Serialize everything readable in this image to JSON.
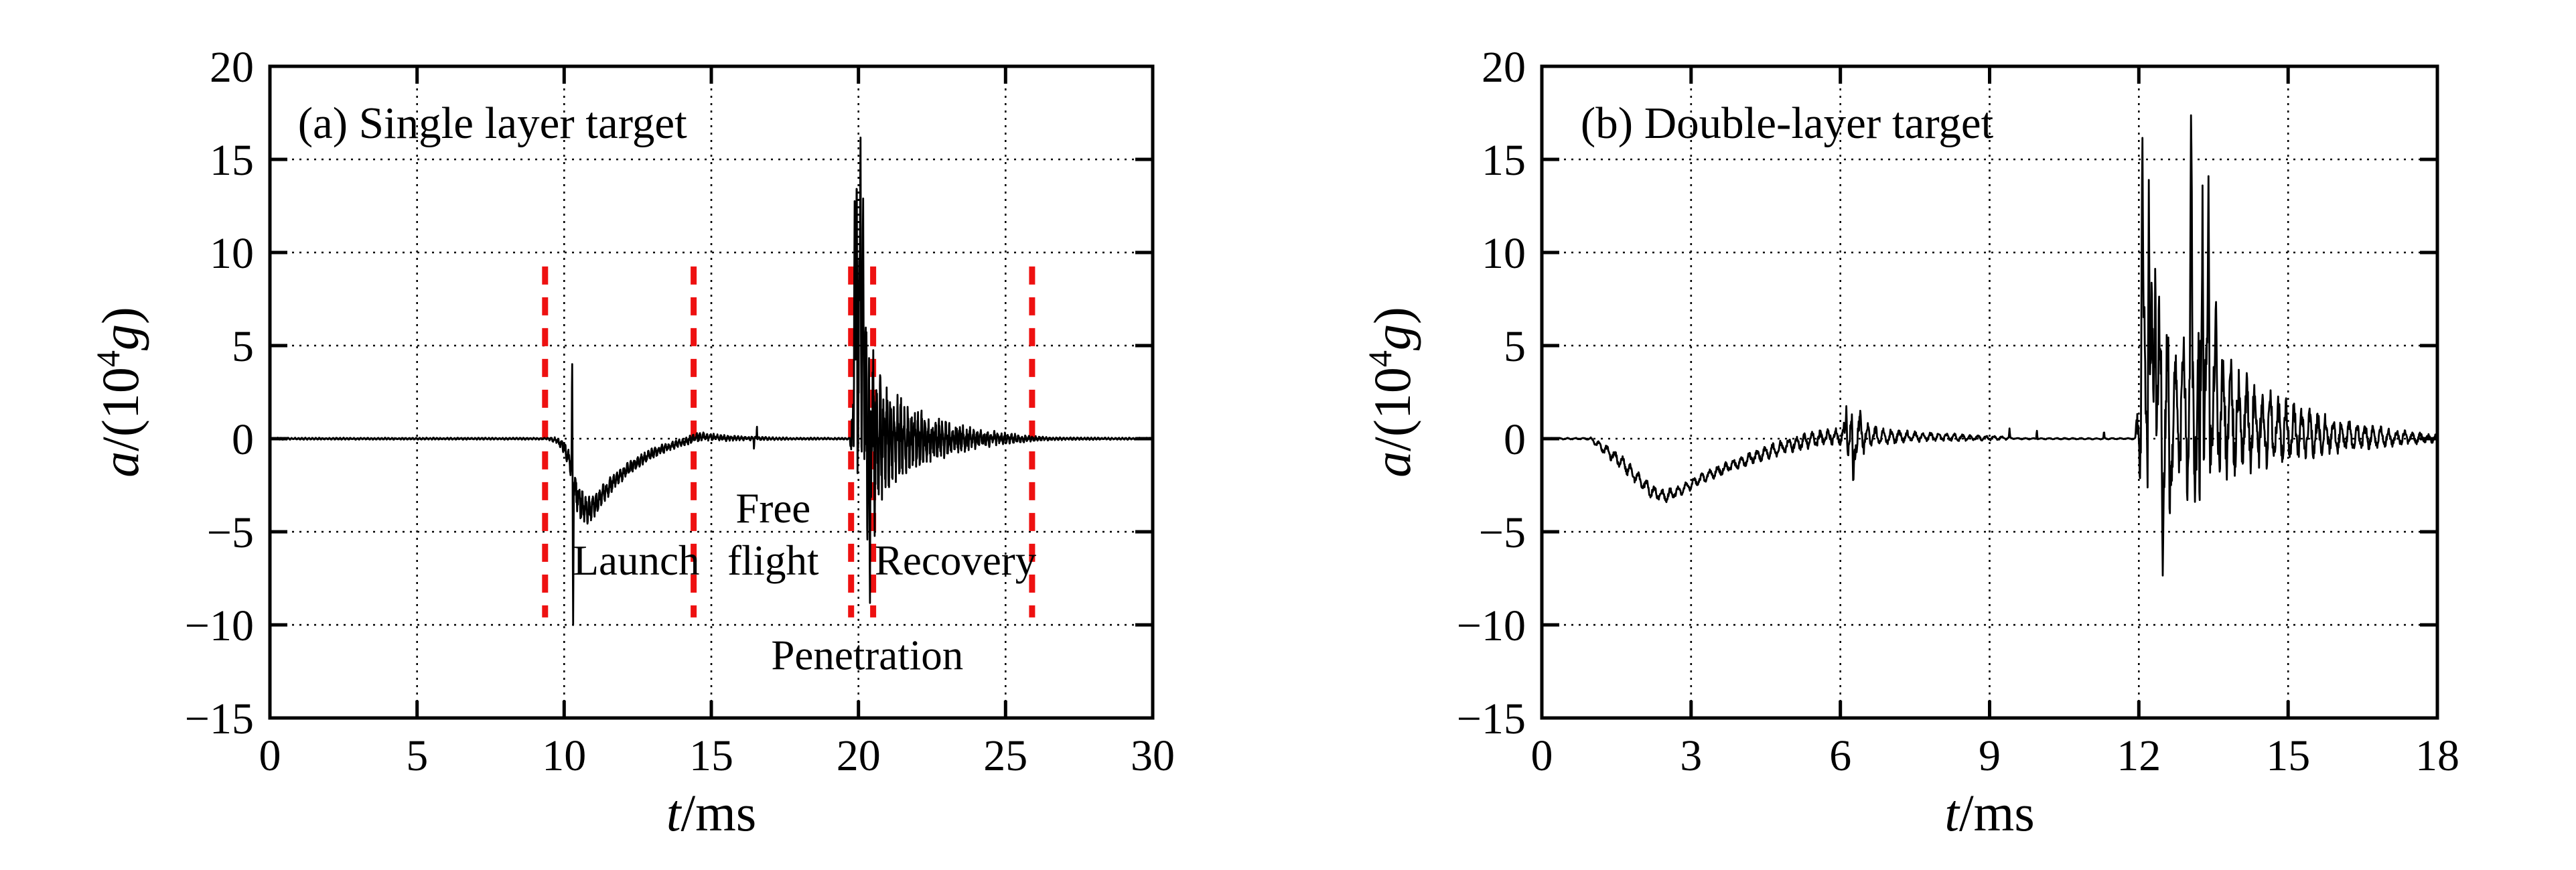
{
  "figure": {
    "background": "#ffffff",
    "description": "Two acceleration-time histories from projectile penetration tests"
  },
  "chart_data": [
    {
      "id": "a",
      "type": "line",
      "title": "(a) Single layer target",
      "title_pos": [
        0.95,
        16.15
      ],
      "xlabel": "t/ms",
      "ylabel": "a/(10⁴g)",
      "xlabel_parts": {
        "var": "t",
        "unit": "ms"
      },
      "ylabel_parts": {
        "numerator": "a",
        "open": "/(10",
        "exponent": "4",
        "base_symbol": "g",
        "close": ")"
      },
      "xlim": [
        0,
        30
      ],
      "ylim": [
        -15,
        20
      ],
      "xticks": [
        0,
        5,
        10,
        15,
        20,
        25,
        30
      ],
      "yticks": [
        -15,
        -10,
        -5,
        0,
        5,
        10,
        15,
        20
      ],
      "grid_x": [
        5,
        10,
        15,
        20,
        25
      ],
      "grid_y": [
        -10,
        -5,
        0,
        5,
        10,
        15
      ],
      "grid_style": "dotted",
      "region_lines": {
        "color": "#ee1111",
        "style": "dashed",
        "x": [
          9.35,
          14.4,
          19.75,
          20.5,
          25.9
        ],
        "y_span": [
          -9.6,
          9.25
        ]
      },
      "phase_labels": [
        {
          "lines": [
            "Launch"
          ],
          "x": 12.45,
          "y": [
            -7.3
          ]
        },
        {
          "lines": [
            "Free",
            "flight"
          ],
          "x": 17.1,
          "y": [
            -4.5,
            -7.3
          ]
        },
        {
          "lines": [
            "Recovery"
          ],
          "x": 23.3,
          "y": [
            -7.3
          ]
        },
        {
          "lines": [
            "Penetration"
          ],
          "x": 20.3,
          "y": [
            -12.4
          ]
        }
      ],
      "signal": {
        "color": "#000000",
        "dt": 0.008,
        "seed": 11,
        "osc_freq": 8.5,
        "osc_mix": 0.58,
        "mean": [
          [
            0,
            0
          ],
          [
            9.5,
            0
          ],
          [
            9.75,
            -0.1
          ],
          [
            10.0,
            -0.45
          ],
          [
            10.2,
            -1.3
          ],
          [
            10.35,
            -2.6
          ],
          [
            10.55,
            -3.5
          ],
          [
            10.75,
            -3.85
          ],
          [
            11.0,
            -3.65
          ],
          [
            11.3,
            -3.0
          ],
          [
            11.7,
            -2.3
          ],
          [
            12.1,
            -1.7
          ],
          [
            12.6,
            -1.15
          ],
          [
            13.1,
            -0.7
          ],
          [
            13.6,
            -0.4
          ],
          [
            14.0,
            -0.2
          ],
          [
            14.35,
            -0.02
          ],
          [
            14.6,
            0.12
          ],
          [
            15.1,
            0.06
          ],
          [
            16.0,
            0.02
          ],
          [
            17.5,
            0
          ],
          [
            19.78,
            0
          ],
          [
            19.9,
            2.4
          ],
          [
            20.05,
            3.6
          ],
          [
            20.2,
            2.6
          ],
          [
            20.45,
            0.8
          ],
          [
            20.8,
            0.15
          ],
          [
            21.2,
            0
          ],
          [
            30,
            0
          ]
        ],
        "envelope": [
          [
            0,
            0.055
          ],
          [
            9.4,
            0.055
          ],
          [
            9.8,
            0.2
          ],
          [
            10.1,
            0.45
          ],
          [
            10.35,
            0.95
          ],
          [
            10.7,
            0.85
          ],
          [
            11.1,
            0.6
          ],
          [
            11.7,
            0.45
          ],
          [
            12.4,
            0.35
          ],
          [
            13.3,
            0.27
          ],
          [
            14.0,
            0.22
          ],
          [
            14.55,
            0.3
          ],
          [
            15.2,
            0.2
          ],
          [
            16.0,
            0.13
          ],
          [
            16.9,
            0.09
          ],
          [
            17.8,
            0.06
          ],
          [
            19.7,
            0.05
          ],
          [
            19.84,
            2.8
          ],
          [
            19.95,
            6.0
          ],
          [
            20.08,
            7.2
          ],
          [
            20.2,
            6.5
          ],
          [
            20.38,
            5.2
          ],
          [
            20.6,
            4.2
          ],
          [
            20.9,
            3.3
          ],
          [
            21.3,
            2.5
          ],
          [
            21.8,
            1.85
          ],
          [
            22.4,
            1.35
          ],
          [
            23.1,
            0.95
          ],
          [
            23.9,
            0.62
          ],
          [
            24.7,
            0.4
          ],
          [
            25.5,
            0.23
          ],
          [
            26.1,
            0.13
          ],
          [
            26.7,
            0.08
          ],
          [
            30,
            0.05
          ]
        ],
        "spikes": [
          [
            10.27,
            4.6,
            0.02
          ],
          [
            10.305,
            -10.35,
            0.022
          ],
          [
            16.45,
            -0.6,
            0.015
          ],
          [
            16.55,
            0.75,
            0.015
          ],
          [
            19.87,
            13.6,
            0.028
          ],
          [
            19.94,
            15.2,
            0.028
          ],
          [
            20.07,
            17.3,
            0.03
          ],
          [
            20.16,
            12.9,
            0.026
          ],
          [
            20.3,
            -6.6,
            0.02
          ],
          [
            20.39,
            -9.9,
            0.026
          ],
          [
            20.55,
            -5.6,
            0.02
          ]
        ]
      }
    },
    {
      "id": "b",
      "type": "line",
      "title": "(b) Double-layer target",
      "title_pos": [
        0.78,
        16.15
      ],
      "xlabel": "t/ms",
      "ylabel": "a/(10⁴g)",
      "xlabel_parts": {
        "var": "t",
        "unit": "ms"
      },
      "ylabel_parts": {
        "numerator": "a",
        "open": "/(10",
        "exponent": "4",
        "base_symbol": "g",
        "close": ")"
      },
      "xlim": [
        0,
        18
      ],
      "ylim": [
        -15,
        20
      ],
      "xticks": [
        0,
        3,
        6,
        9,
        12,
        15,
        18
      ],
      "yticks": [
        -15,
        -10,
        -5,
        0,
        5,
        10,
        15,
        20
      ],
      "grid_x": [
        3,
        6,
        9,
        12,
        15
      ],
      "grid_y": [
        -10,
        -5,
        0,
        5,
        10,
        15
      ],
      "grid_style": "dotted",
      "phase_labels": [],
      "signal": {
        "color": "#000000",
        "dt": 0.008,
        "seed": 23,
        "osc_freq": 6.3,
        "osc_mix": 0.66,
        "mean": [
          [
            0,
            0
          ],
          [
            0.98,
            0
          ],
          [
            1.25,
            -0.55
          ],
          [
            1.6,
            -1.25
          ],
          [
            1.95,
            -2.2
          ],
          [
            2.25,
            -2.9
          ],
          [
            2.5,
            -3.08
          ],
          [
            2.78,
            -2.8
          ],
          [
            3.1,
            -2.3
          ],
          [
            3.45,
            -1.85
          ],
          [
            3.85,
            -1.4
          ],
          [
            4.25,
            -1.0
          ],
          [
            4.65,
            -0.62
          ],
          [
            5.05,
            -0.3
          ],
          [
            5.45,
            -0.05
          ],
          [
            5.85,
            0.12
          ],
          [
            6.3,
            0.1
          ],
          [
            6.9,
            0.12
          ],
          [
            7.6,
            0.1
          ],
          [
            8.4,
            0.06
          ],
          [
            9.3,
            0.03
          ],
          [
            9.65,
            0
          ],
          [
            11.95,
            0
          ],
          [
            12.1,
            2.2
          ],
          [
            12.35,
            2.6
          ],
          [
            12.65,
            1.6
          ],
          [
            12.95,
            1.9
          ],
          [
            13.1,
            2.6
          ],
          [
            13.45,
            2.0
          ],
          [
            13.75,
            1.25
          ],
          [
            14.15,
            0.8
          ],
          [
            14.65,
            0.5
          ],
          [
            15.25,
            0.3
          ],
          [
            16.0,
            0.15
          ],
          [
            17.0,
            0.06
          ],
          [
            18,
            0.02
          ]
        ],
        "envelope": [
          [
            0,
            0.045
          ],
          [
            0.95,
            0.05
          ],
          [
            1.2,
            0.3
          ],
          [
            1.6,
            0.42
          ],
          [
            2.1,
            0.46
          ],
          [
            2.6,
            0.36
          ],
          [
            3.1,
            0.3
          ],
          [
            3.7,
            0.33
          ],
          [
            4.3,
            0.38
          ],
          [
            4.9,
            0.43
          ],
          [
            5.5,
            0.46
          ],
          [
            5.95,
            0.5
          ],
          [
            6.1,
            1.0
          ],
          [
            6.28,
            1.5
          ],
          [
            6.5,
            0.85
          ],
          [
            6.8,
            0.5
          ],
          [
            7.3,
            0.36
          ],
          [
            7.9,
            0.27
          ],
          [
            8.5,
            0.19
          ],
          [
            9.2,
            0.12
          ],
          [
            9.55,
            0.04
          ],
          [
            11.92,
            0.04
          ],
          [
            12.05,
            4.8
          ],
          [
            12.18,
            6.6
          ],
          [
            12.38,
            6.0
          ],
          [
            12.62,
            4.6
          ],
          [
            12.88,
            3.9
          ],
          [
            13.05,
            6.6
          ],
          [
            13.25,
            6.0
          ],
          [
            13.48,
            4.6
          ],
          [
            13.75,
            3.6
          ],
          [
            14.05,
            3.0
          ],
          [
            14.45,
            2.35
          ],
          [
            14.95,
            1.8
          ],
          [
            15.45,
            1.4
          ],
          [
            16.0,
            1.02
          ],
          [
            16.6,
            0.72
          ],
          [
            17.2,
            0.46
          ],
          [
            17.7,
            0.3
          ],
          [
            18,
            0.23
          ]
        ],
        "spikes": [
          [
            6.12,
            1.75,
            0.02
          ],
          [
            6.26,
            -2.75,
            0.024
          ],
          [
            6.4,
            1.5,
            0.018
          ],
          [
            9.4,
            0.55,
            0.014
          ],
          [
            9.95,
            0.5,
            0.014
          ],
          [
            11.3,
            0.45,
            0.014
          ],
          [
            12.07,
            17.1,
            0.028
          ],
          [
            12.2,
            13.9,
            0.026
          ],
          [
            12.33,
            10.2,
            0.024
          ],
          [
            12.48,
            -7.35,
            0.026
          ],
          [
            12.62,
            -5.2,
            0.022
          ],
          [
            13.05,
            18.1,
            0.028
          ],
          [
            13.22,
            -5.6,
            0.02
          ],
          [
            13.28,
            13.6,
            0.026
          ],
          [
            13.4,
            14.1,
            0.024
          ],
          [
            13.55,
            7.9,
            0.02
          ]
        ]
      }
    }
  ]
}
